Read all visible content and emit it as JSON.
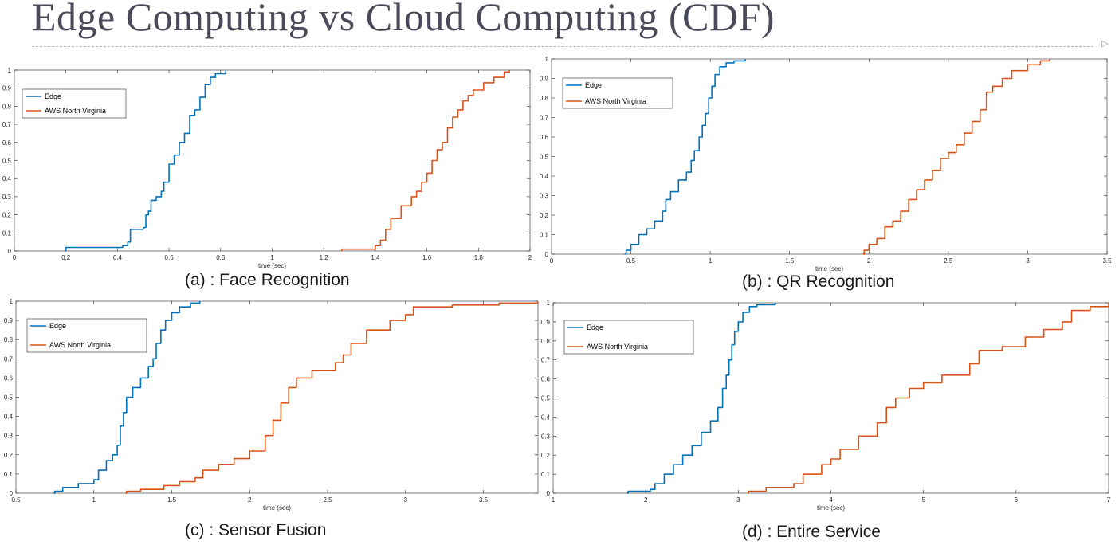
{
  "page": {
    "title": "Edge Computing vs Cloud Computing (CDF)",
    "corner_glyph": "▷",
    "accent_color": "#a8bcc4",
    "title_color": "#4a4a5a"
  },
  "series_colors": {
    "edge": "#0072BD",
    "cloud": "#D95319"
  },
  "chart_data": [
    {
      "type": "line",
      "caption": "(a) : Face Recognition",
      "xlabel": "time (sec)",
      "ylabel": "",
      "xlim": [
        0,
        2
      ],
      "ylim": [
        0,
        1
      ],
      "xticks": [
        0,
        0.2,
        0.4,
        0.6,
        0.8,
        1,
        1.2,
        1.4,
        1.6,
        1.8,
        2
      ],
      "xtick_labels": [
        "0",
        "0.2",
        "0.4",
        "0.6",
        "0.8",
        "1",
        "1.2",
        "1.4",
        "1.6",
        "1.8",
        "2"
      ],
      "yticks": [
        0,
        0.1,
        0.2,
        0.3,
        0.4,
        0.5,
        0.6,
        0.7,
        0.8,
        0.9,
        1
      ],
      "ytick_labels": [
        "0",
        "0.1",
        "0.2",
        "0.3",
        "0.4",
        "0.5",
        "0.6",
        "0.7",
        "0.8",
        "0.9",
        "1"
      ],
      "legend": "top-left",
      "grid": false,
      "series": [
        {
          "name": "Edge",
          "x": [
            0.2,
            0.2,
            0.42,
            0.44,
            0.45,
            0.5,
            0.51,
            0.52,
            0.53,
            0.55,
            0.57,
            0.58,
            0.6,
            0.62,
            0.64,
            0.66,
            0.68,
            0.7,
            0.72,
            0.74,
            0.76,
            0.78,
            0.82
          ],
          "y": [
            0,
            0.02,
            0.03,
            0.05,
            0.12,
            0.13,
            0.2,
            0.22,
            0.28,
            0.3,
            0.33,
            0.38,
            0.48,
            0.53,
            0.6,
            0.65,
            0.75,
            0.78,
            0.85,
            0.92,
            0.96,
            0.98,
            1.0
          ]
        },
        {
          "name": "AWS North Virginia",
          "x": [
            1.27,
            1.27,
            1.4,
            1.42,
            1.44,
            1.46,
            1.5,
            1.54,
            1.56,
            1.58,
            1.6,
            1.62,
            1.64,
            1.66,
            1.68,
            1.7,
            1.72,
            1.74,
            1.76,
            1.78,
            1.82,
            1.86,
            1.9,
            1.92
          ],
          "y": [
            0,
            0.01,
            0.03,
            0.06,
            0.12,
            0.18,
            0.25,
            0.3,
            0.33,
            0.38,
            0.43,
            0.5,
            0.56,
            0.6,
            0.68,
            0.74,
            0.78,
            0.83,
            0.86,
            0.89,
            0.93,
            0.96,
            0.99,
            1.0
          ]
        }
      ]
    },
    {
      "type": "line",
      "caption": "(b) : QR Recognition",
      "xlabel": "time (sec)",
      "ylabel": "",
      "xlim": [
        0,
        3.5
      ],
      "ylim": [
        0,
        1
      ],
      "xticks": [
        0,
        0.5,
        1,
        1.5,
        2,
        2.5,
        3,
        3.5
      ],
      "xtick_labels": [
        "0",
        "0.5",
        "1",
        "1.5",
        "2",
        "2.5",
        "3",
        "3.5"
      ],
      "yticks": [
        0,
        0.1,
        0.2,
        0.3,
        0.4,
        0.5,
        0.6,
        0.7,
        0.8,
        0.9,
        1
      ],
      "ytick_labels": [
        "0",
        "0.1",
        "0.2",
        "0.3",
        "0.4",
        "0.5",
        "0.6",
        "0.7",
        "0.8",
        "0.9",
        "1"
      ],
      "legend": "top-left",
      "grid": false,
      "series": [
        {
          "name": "Edge",
          "x": [
            0.46,
            0.47,
            0.5,
            0.55,
            0.6,
            0.65,
            0.7,
            0.72,
            0.75,
            0.8,
            0.85,
            0.88,
            0.9,
            0.93,
            0.95,
            0.97,
            0.99,
            1.01,
            1.03,
            1.06,
            1.1,
            1.15,
            1.22
          ],
          "y": [
            0,
            0.02,
            0.05,
            0.1,
            0.13,
            0.17,
            0.22,
            0.28,
            0.32,
            0.38,
            0.42,
            0.48,
            0.53,
            0.6,
            0.66,
            0.72,
            0.8,
            0.86,
            0.92,
            0.96,
            0.98,
            0.99,
            1.0
          ]
        },
        {
          "name": "AWS North Virginia",
          "x": [
            1.96,
            1.97,
            2.0,
            2.05,
            2.1,
            2.15,
            2.2,
            2.25,
            2.3,
            2.35,
            2.4,
            2.45,
            2.5,
            2.55,
            2.6,
            2.65,
            2.7,
            2.74,
            2.78,
            2.84,
            2.9,
            3.0,
            3.08,
            3.14
          ],
          "y": [
            0,
            0.02,
            0.05,
            0.08,
            0.14,
            0.17,
            0.22,
            0.28,
            0.33,
            0.38,
            0.43,
            0.49,
            0.52,
            0.56,
            0.62,
            0.68,
            0.74,
            0.83,
            0.86,
            0.9,
            0.94,
            0.97,
            0.99,
            1.0
          ]
        }
      ]
    },
    {
      "type": "line",
      "caption": "(c) : Sensor Fusion",
      "xlabel": "time (sec)",
      "ylabel": "",
      "xlim": [
        0.5,
        3.85
      ],
      "ylim": [
        0,
        1
      ],
      "xticks": [
        0.5,
        1,
        1.5,
        2,
        2.5,
        3,
        3.5
      ],
      "xtick_labels": [
        "0.5",
        "1",
        "1.5",
        "2",
        "2.5",
        "3",
        "3.5"
      ],
      "yticks": [
        0,
        0.1,
        0.2,
        0.3,
        0.4,
        0.5,
        0.6,
        0.7,
        0.8,
        0.9,
        1
      ],
      "ytick_labels": [
        "0",
        "0.1",
        "0.2",
        "0.3",
        "0.4",
        "0.5",
        "0.6",
        "0.7",
        "0.8",
        "0.9",
        "1"
      ],
      "legend": "top-left",
      "grid": false,
      "series": [
        {
          "name": "Edge",
          "x": [
            0.74,
            0.75,
            0.8,
            0.9,
            1.0,
            1.03,
            1.08,
            1.12,
            1.15,
            1.17,
            1.19,
            1.21,
            1.25,
            1.3,
            1.35,
            1.38,
            1.4,
            1.43,
            1.46,
            1.5,
            1.55,
            1.62,
            1.68
          ],
          "y": [
            0,
            0.01,
            0.03,
            0.05,
            0.07,
            0.12,
            0.17,
            0.2,
            0.25,
            0.35,
            0.42,
            0.5,
            0.55,
            0.6,
            0.66,
            0.7,
            0.78,
            0.85,
            0.9,
            0.94,
            0.97,
            0.99,
            1.0
          ]
        },
        {
          "name": "AWS North Virginia",
          "x": [
            1.2,
            1.21,
            1.3,
            1.45,
            1.55,
            1.65,
            1.7,
            1.8,
            1.9,
            2.0,
            2.1,
            2.15,
            2.2,
            2.25,
            2.3,
            2.4,
            2.55,
            2.6,
            2.65,
            2.75,
            2.9,
            3.0,
            3.05,
            3.3,
            3.6,
            3.85
          ],
          "y": [
            0,
            0.01,
            0.02,
            0.04,
            0.06,
            0.08,
            0.12,
            0.15,
            0.18,
            0.22,
            0.3,
            0.38,
            0.47,
            0.55,
            0.6,
            0.64,
            0.68,
            0.72,
            0.78,
            0.85,
            0.9,
            0.93,
            0.97,
            0.98,
            0.99,
            0.995
          ]
        }
      ]
    },
    {
      "type": "line",
      "caption": "(d) : Entire Service",
      "xlabel": "time (sec)",
      "ylabel": "",
      "xlim": [
        1,
        7
      ],
      "ylim": [
        0,
        1
      ],
      "xticks": [
        1,
        2,
        3,
        4,
        5,
        6,
        7
      ],
      "xtick_labels": [
        "1",
        "2",
        "3",
        "4",
        "5",
        "6",
        "7"
      ],
      "yticks": [
        0,
        0.1,
        0.2,
        0.3,
        0.4,
        0.5,
        0.6,
        0.7,
        0.8,
        0.9,
        1
      ],
      "ytick_labels": [
        "0",
        "0.1",
        "0.2",
        "0.3",
        "0.4",
        "0.5",
        "0.6",
        "0.7",
        "0.8",
        "0.9",
        "1"
      ],
      "legend": "top-left",
      "grid": false,
      "series": [
        {
          "name": "Edge",
          "x": [
            1.8,
            1.81,
            2.05,
            2.1,
            2.2,
            2.3,
            2.4,
            2.5,
            2.6,
            2.7,
            2.78,
            2.83,
            2.87,
            2.9,
            2.93,
            2.96,
            3.0,
            3.05,
            3.12,
            3.2,
            3.4
          ],
          "y": [
            0,
            0.01,
            0.02,
            0.05,
            0.1,
            0.15,
            0.2,
            0.25,
            0.32,
            0.38,
            0.45,
            0.55,
            0.62,
            0.7,
            0.78,
            0.85,
            0.9,
            0.95,
            0.98,
            0.99,
            1.0
          ]
        },
        {
          "name": "AWS North Virginia",
          "x": [
            3.1,
            3.11,
            3.3,
            3.6,
            3.7,
            3.9,
            4.0,
            4.1,
            4.3,
            4.5,
            4.6,
            4.7,
            4.85,
            5.0,
            5.2,
            5.5,
            5.6,
            5.85,
            6.1,
            6.3,
            6.5,
            6.6,
            6.8,
            7.0
          ],
          "y": [
            0,
            0.01,
            0.03,
            0.05,
            0.1,
            0.15,
            0.18,
            0.23,
            0.3,
            0.37,
            0.45,
            0.5,
            0.55,
            0.58,
            0.62,
            0.68,
            0.75,
            0.77,
            0.82,
            0.86,
            0.9,
            0.96,
            0.98,
            1.0
          ]
        }
      ]
    }
  ]
}
